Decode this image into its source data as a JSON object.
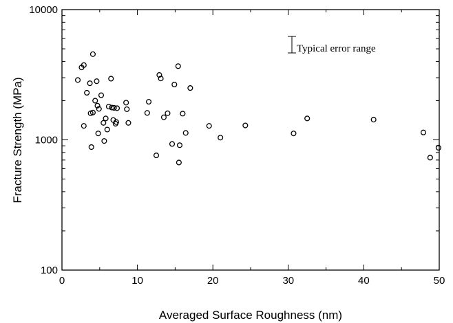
{
  "chart_data": {
    "type": "scatter",
    "title": "",
    "xlabel": "Averaged Surface Roughness (nm)",
    "ylabel": "Fracture Strength (MPa)",
    "xlim": [
      0,
      50
    ],
    "ylim": [
      100,
      10000
    ],
    "y_scale": "log",
    "x_ticks": [
      0,
      10,
      20,
      30,
      40,
      50
    ],
    "y_ticks": [
      100,
      1000,
      10000
    ],
    "x_tick_labels": [
      "0",
      "10",
      "20",
      "30",
      "40",
      "50"
    ],
    "y_tick_labels": [
      "100",
      "1000",
      "10000"
    ],
    "grid": false,
    "marker": "open-circle",
    "annotation": {
      "text": "Typical error range",
      "symbol": "error-bar",
      "position": "top-right"
    },
    "points": [
      [
        2.1,
        2880
      ],
      [
        2.6,
        3600
      ],
      [
        2.9,
        3750
      ],
      [
        2.9,
        1280
      ],
      [
        3.3,
        2300
      ],
      [
        3.7,
        2720
      ],
      [
        3.8,
        1600
      ],
      [
        3.9,
        880
      ],
      [
        4.1,
        4550
      ],
      [
        4.1,
        1620
      ],
      [
        4.4,
        2000
      ],
      [
        4.6,
        2820
      ],
      [
        4.7,
        1830
      ],
      [
        4.8,
        1120
      ],
      [
        4.9,
        1730
      ],
      [
        5.2,
        2200
      ],
      [
        5.5,
        1350
      ],
      [
        5.6,
        980
      ],
      [
        5.8,
        1460
      ],
      [
        6.0,
        1200
      ],
      [
        6.2,
        1800
      ],
      [
        6.5,
        2950
      ],
      [
        6.6,
        1770
      ],
      [
        6.8,
        1420
      ],
      [
        6.9,
        1760
      ],
      [
        7.1,
        1330
      ],
      [
        7.2,
        1370
      ],
      [
        7.3,
        1750
      ],
      [
        8.5,
        1930
      ],
      [
        8.6,
        1720
      ],
      [
        8.8,
        1350
      ],
      [
        11.3,
        1610
      ],
      [
        11.5,
        1960
      ],
      [
        12.5,
        760
      ],
      [
        12.9,
        3150
      ],
      [
        13.1,
        2960
      ],
      [
        13.5,
        1490
      ],
      [
        14.0,
        1600
      ],
      [
        14.6,
        930
      ],
      [
        14.9,
        2660
      ],
      [
        15.4,
        3680
      ],
      [
        15.5,
        670
      ],
      [
        15.6,
        910
      ],
      [
        16.0,
        1590
      ],
      [
        16.4,
        1130
      ],
      [
        17.0,
        2500
      ],
      [
        19.5,
        1280
      ],
      [
        21.0,
        1040
      ],
      [
        24.3,
        1290
      ],
      [
        30.7,
        1120
      ],
      [
        32.5,
        1460
      ],
      [
        41.3,
        1430
      ],
      [
        47.9,
        1140
      ],
      [
        48.8,
        730
      ],
      [
        49.9,
        870
      ]
    ]
  }
}
